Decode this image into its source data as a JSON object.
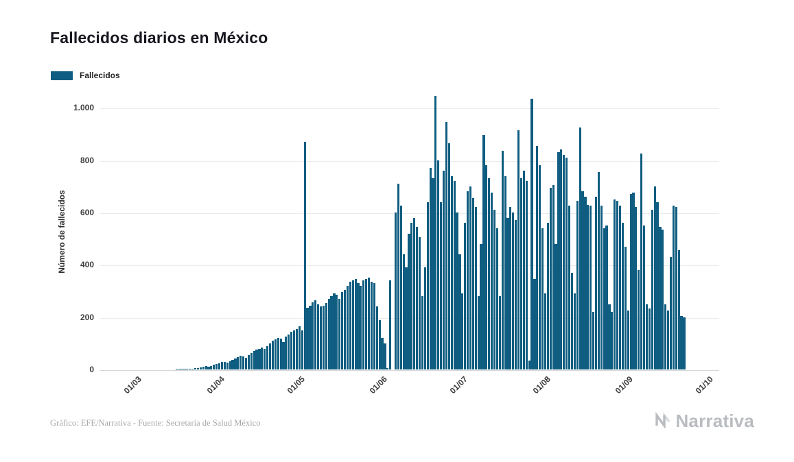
{
  "page": {
    "title": "Fallecidos diarios en México",
    "legend": {
      "label": "Fallecidos",
      "color": "#0f5d80"
    },
    "y_axis_label": "Número de fallecidos",
    "footer": {
      "credit": "Gráfico: EFE/Narrativa - Fuente: Secretaría de Salud México",
      "brand": "Narrativa"
    }
  },
  "chart_data": {
    "type": "bar",
    "title": "Fallecidos diarios en México",
    "series_name": "Fallecidos",
    "ylabel": "Número de fallecidos",
    "bar_color": "#0f5d80",
    "grid": true,
    "legend_position": "top-left",
    "ylim": [
      0,
      1100
    ],
    "y_ticks": [
      0,
      200,
      400,
      600,
      800,
      1000
    ],
    "y_tick_labels": [
      "0",
      "200",
      "400",
      "600",
      "800",
      "1.000"
    ],
    "x_tick_labels": [
      "01/03",
      "01/04",
      "01/05",
      "01/06",
      "01/07",
      "01/08",
      "01/09",
      "01/10"
    ],
    "x_tick_day_index": [
      0,
      31,
      61,
      92,
      122,
      153,
      184,
      214
    ],
    "values": [
      0,
      0,
      0,
      0,
      0,
      0,
      0,
      0,
      0,
      0,
      0,
      0,
      0,
      0,
      0,
      0,
      1,
      1,
      2,
      2,
      3,
      4,
      4,
      5,
      6,
      8,
      10,
      12,
      10,
      14,
      18,
      20,
      25,
      28,
      30,
      26,
      32,
      38,
      42,
      48,
      52,
      50,
      45,
      55,
      62,
      70,
      75,
      80,
      85,
      78,
      90,
      100,
      110,
      115,
      120,
      118,
      105,
      125,
      135,
      145,
      150,
      155,
      165,
      150,
      870,
      236,
      244,
      257,
      264,
      250,
      240,
      245,
      255,
      270,
      280,
      290,
      285,
      270,
      295,
      305,
      320,
      335,
      340,
      345,
      330,
      320,
      340,
      345,
      350,
      335,
      330,
      240,
      190,
      120,
      100,
      5,
      340,
      0,
      600,
      710,
      625,
      440,
      390,
      520,
      560,
      580,
      545,
      505,
      280,
      390,
      640,
      770,
      730,
      1044,
      800,
      640,
      760,
      945,
      865,
      740,
      720,
      600,
      440,
      290,
      560,
      680,
      700,
      655,
      620,
      280,
      480,
      895,
      780,
      730,
      675,
      610,
      540,
      280,
      835,
      740,
      580,
      620,
      600,
      570,
      915,
      730,
      760,
      720,
      35,
      1035,
      345,
      855,
      780,
      540,
      290,
      560,
      695,
      705,
      480,
      830,
      840,
      820,
      810,
      625,
      370,
      290,
      645,
      925,
      680,
      660,
      630,
      625,
      220,
      660,
      755,
      625,
      540,
      550,
      250,
      220,
      650,
      645,
      625,
      560,
      470,
      225,
      670,
      675,
      620,
      380,
      825,
      550,
      250,
      232,
      610,
      700,
      640,
      545,
      535,
      250,
      225,
      430,
      625,
      620,
      455,
      205,
      200
    ]
  }
}
